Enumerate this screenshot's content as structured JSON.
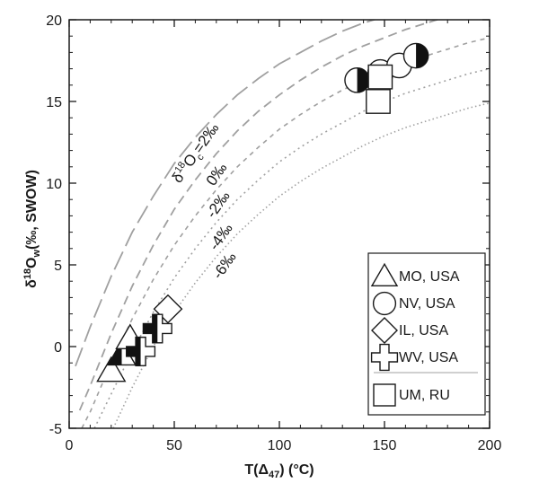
{
  "chart_data": {
    "type": "scatter",
    "title": "",
    "xlabel": {
      "main": "T(Δ",
      "sub": "47",
      "tail": ") (°C)"
    },
    "ylabel": {
      "pre": "δ",
      "sup": "18",
      "mid": "O",
      "sub": "w",
      "tail": "(‰, SWOW)"
    },
    "xlim": [
      0,
      200
    ],
    "ylim": [
      -5,
      20
    ],
    "x_ticks": [
      "0",
      "50",
      "100",
      "150",
      "200"
    ],
    "y_ticks": [
      "-5",
      "0",
      "5",
      "10",
      "15",
      "20"
    ],
    "grid": false,
    "colors": {
      "axis": "#1a1a1a",
      "curve": "#a0a0a0",
      "marker_fill": "#ffffff",
      "marker_dark": "#111111"
    },
    "curves": [
      {
        "label_parts": {
          "pre": "δ",
          "sup": "18",
          "mid": "O",
          "sub": "c",
          "tail": "=2‰"
        },
        "d18Oc": 2,
        "x": [
          3,
          10,
          20,
          30,
          40,
          50,
          60,
          70,
          80,
          90,
          100,
          110,
          120,
          130,
          140,
          150,
          160,
          170,
          180
        ],
        "y": [
          -1.2,
          1.2,
          4.3,
          7.0,
          9.2,
          11.2,
          12.8,
          14.2,
          15.4,
          16.4,
          17.3,
          18.0,
          18.7,
          19.3,
          19.8,
          20.2,
          20.6,
          21.0,
          21.3
        ]
      },
      {
        "label": "0‰",
        "d18Oc": 0,
        "x": [
          5,
          10,
          20,
          30,
          40,
          50,
          60,
          70,
          80,
          90,
          100,
          110,
          120,
          130,
          140,
          150,
          160,
          170,
          180,
          190,
          200
        ],
        "y": [
          -3.9,
          -2.4,
          0.8,
          3.7,
          6.2,
          8.4,
          10.2,
          11.8,
          13.2,
          14.4,
          15.4,
          16.3,
          17.1,
          17.8,
          18.4,
          18.9,
          19.4,
          19.8,
          20.2,
          20.5,
          20.8
        ]
      },
      {
        "label": "-2‰",
        "d18Oc": -2,
        "x": [
          6,
          10,
          20,
          30,
          40,
          50,
          60,
          70,
          80,
          90,
          100,
          110,
          120,
          130,
          140,
          150,
          160,
          170,
          180,
          190,
          200
        ],
        "y": [
          -5.0,
          -4.0,
          -1.0,
          1.7,
          4.1,
          6.2,
          8.0,
          9.6,
          11.0,
          12.2,
          13.3,
          14.2,
          15.0,
          15.7,
          16.3,
          16.9,
          17.4,
          17.8,
          18.2,
          18.6,
          18.9
        ]
      },
      {
        "label": "-4‰",
        "d18Oc": -4,
        "x": [
          12,
          20,
          30,
          40,
          50,
          60,
          70,
          80,
          90,
          100,
          110,
          120,
          130,
          140,
          150,
          160,
          170,
          180,
          190,
          200
        ],
        "y": [
          -5.0,
          -2.9,
          -0.3,
          2.1,
          4.2,
          6.0,
          7.6,
          9.0,
          10.2,
          11.3,
          12.2,
          13.0,
          13.7,
          14.4,
          15.0,
          15.5,
          15.9,
          16.3,
          16.7,
          17.0
        ]
      },
      {
        "label": "-6‰",
        "d18Oc": -6,
        "x": [
          21,
          30,
          40,
          50,
          60,
          70,
          80,
          90,
          100,
          110,
          120,
          130,
          140,
          150,
          160,
          170,
          180,
          190,
          200
        ],
        "y": [
          -5.0,
          -2.5,
          0.0,
          2.1,
          3.9,
          5.5,
          6.9,
          8.1,
          9.2,
          10.1,
          10.9,
          11.6,
          12.3,
          12.9,
          13.4,
          13.8,
          14.2,
          14.6,
          14.9
        ]
      }
    ],
    "series": [
      {
        "name": "MO, USA",
        "marker": "triangle",
        "points": [
          [
            20,
            -1.5,
            "open"
          ],
          [
            25,
            -0.5,
            "half"
          ],
          [
            29,
            0.5,
            "open"
          ]
        ]
      },
      {
        "name": "NV, USA",
        "marker": "circle",
        "points": [
          [
            137,
            16.3,
            "half"
          ],
          [
            148,
            16.6,
            "open"
          ],
          [
            148,
            16.8,
            "open"
          ],
          [
            157,
            17.2,
            "open"
          ],
          [
            165,
            17.8,
            "half"
          ]
        ]
      },
      {
        "name": "IL, USA",
        "marker": "diamond",
        "points": [
          [
            47,
            2.3,
            "open"
          ]
        ]
      },
      {
        "name": "WV, USA",
        "marker": "cross",
        "points": [
          [
            34,
            -0.3,
            "half"
          ],
          [
            42,
            1.1,
            "half"
          ]
        ]
      },
      {
        "name": "UM, RU",
        "marker": "square",
        "points": [
          [
            147,
            15.0,
            "open"
          ],
          [
            148,
            16.5,
            "open"
          ]
        ]
      }
    ],
    "legend": {
      "position": "bottom-right",
      "entries": [
        "MO, USA",
        "NV, USA",
        "IL, USA",
        "WV, USA",
        "UM, RU"
      ]
    }
  }
}
